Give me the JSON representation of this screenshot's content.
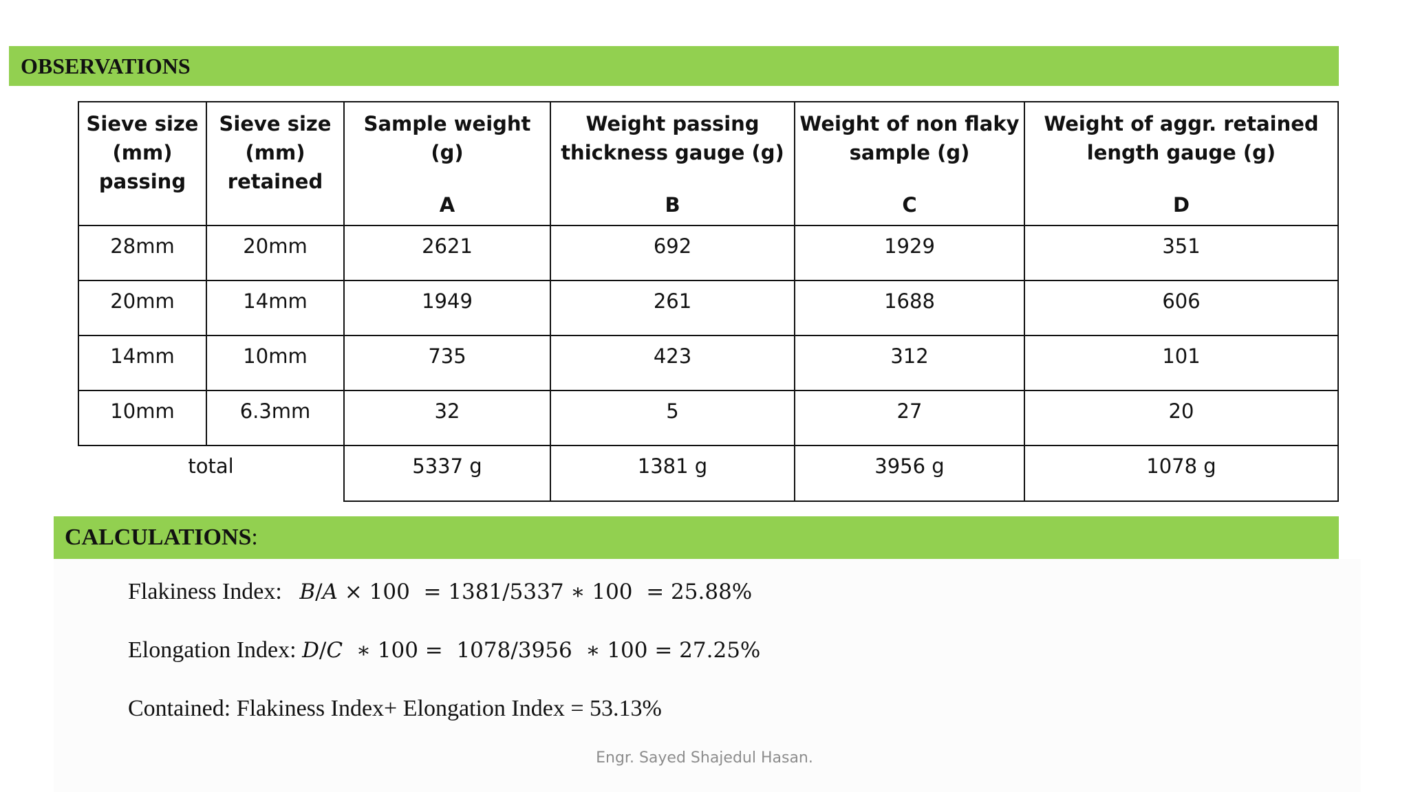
{
  "observations": {
    "title": "OBSERVATIONS"
  },
  "table": {
    "headers": [
      {
        "text": "Sieve size\n(mm)\npassing",
        "letter": ""
      },
      {
        "text": "Sieve size\n(mm)\nretained",
        "letter": ""
      },
      {
        "text": "Sample weight (g)",
        "letter": "A"
      },
      {
        "text": "Weight passing\nthickness gauge (g)",
        "letter": "B"
      },
      {
        "text": "Weight of non flaky\nsample (g)",
        "letter": "C"
      },
      {
        "text": "Weight of aggr. retained\nlength gauge   (g)",
        "letter": "D"
      }
    ],
    "rows": [
      [
        "28mm",
        "20mm",
        "2621",
        "692",
        "1929",
        "351"
      ],
      [
        "20mm",
        "14mm",
        "1949",
        "261",
        "1688",
        "606"
      ],
      [
        "14mm",
        "10mm",
        "735",
        "423",
        "312",
        "101"
      ],
      [
        "10mm",
        "6.3mm",
        "32",
        "5",
        "27",
        "20"
      ]
    ],
    "total": {
      "label": "total",
      "values": [
        "5337 g",
        "1381 g",
        "3956 g",
        "1078 g"
      ]
    }
  },
  "calculations": {
    "title": "CALCULATIONS",
    "colon": ":",
    "flakiness": {
      "label": "Flakiness Index:",
      "var_b": "B",
      "var_a": "A",
      "formula": "× 100  = 1381/5337 ∗ 100  = 25.88%"
    },
    "elongation": {
      "label": "Elongation Index:",
      "var_d": "D",
      "var_c": "C",
      "formula": " ∗ 100 =  1078/3956  ∗ 100 = 27.25%"
    },
    "contained": "Contained: Flakiness Index+ Elongation Index = 53.13%"
  },
  "footer": "Engr. Sayed Shajedul Hasan."
}
